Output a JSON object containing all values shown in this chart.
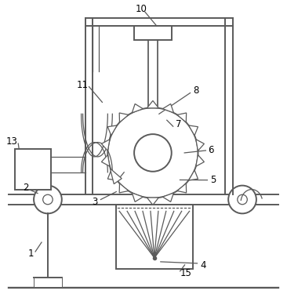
{
  "bg_color": "#ffffff",
  "line_color": "#5a5a5a",
  "line_width": 1.4,
  "thin_line": 0.9,
  "figsize": [
    3.66,
    3.75
  ],
  "dpi": 100
}
